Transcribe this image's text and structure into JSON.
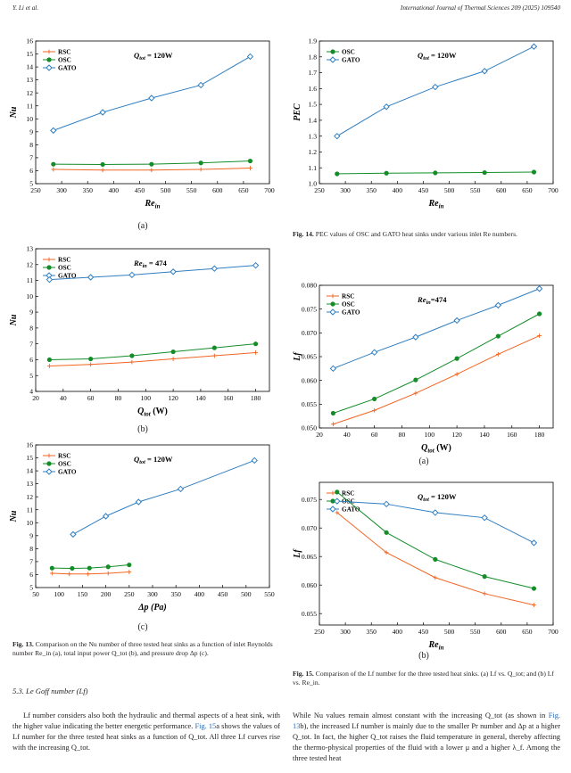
{
  "header": {
    "left": "Y. Li et al.",
    "right": "International Journal of Thermal Sciences 209 (2025) 109540"
  },
  "colors": {
    "RSC": "#f26522",
    "OSC": "#138d28",
    "GATO": "#2f7ec1"
  },
  "chart_data": [
    {
      "id": "fig13a",
      "type": "line",
      "sublabel": "(a)",
      "annotation": "Q_tot = 120W",
      "annotation_main": "Q",
      "annotation_sub": "tot",
      "annotation_rest": " = 120W",
      "xlabel_main": "Re",
      "xlabel_sub": "in",
      "xlabel_units": "",
      "ylabel": "Nu",
      "ylabel_style": "italic",
      "xlim": [
        250,
        700
      ],
      "ylim": [
        5,
        16
      ],
      "xticks": [
        "250",
        "300",
        "350",
        "400",
        "450",
        "500",
        "550",
        "600",
        "650",
        "700"
      ],
      "yticks": [
        "5",
        "6",
        "7",
        "8",
        "9",
        "10",
        "11",
        "12",
        "13",
        "14",
        "15",
        "16"
      ],
      "legend": [
        "RSC",
        "OSC",
        "GATO"
      ],
      "series": [
        {
          "name": "RSC",
          "x": [
            284,
            379,
            473,
            568,
            663
          ],
          "y": [
            6.1,
            6.05,
            6.05,
            6.1,
            6.2
          ]
        },
        {
          "name": "OSC",
          "x": [
            284,
            379,
            473,
            568,
            663
          ],
          "y": [
            6.5,
            6.48,
            6.5,
            6.6,
            6.75
          ]
        },
        {
          "name": "GATO",
          "x": [
            284,
            379,
            473,
            568,
            663
          ],
          "y": [
            9.1,
            10.5,
            11.6,
            12.6,
            14.8
          ]
        }
      ]
    },
    {
      "id": "fig13b",
      "type": "line",
      "sublabel": "(b)",
      "annotation": "Re_in = 474",
      "annotation_main": "Re",
      "annotation_sub": "in",
      "annotation_rest": " = 474",
      "xlabel_main": "Q",
      "xlabel_sub": "tot",
      "xlabel_units": " (W)",
      "ylabel": "Nu",
      "ylabel_style": "italic",
      "xlim": [
        20,
        190
      ],
      "ylim": [
        4,
        13
      ],
      "xticks": [
        "20",
        "40",
        "60",
        "80",
        "100",
        "120",
        "140",
        "160",
        "180"
      ],
      "yticks": [
        "4",
        "5",
        "6",
        "7",
        "8",
        "9",
        "10",
        "11",
        "12",
        "13"
      ],
      "legend": [
        "RSC",
        "OSC",
        "GATO"
      ],
      "series": [
        {
          "name": "RSC",
          "x": [
            30,
            60,
            90,
            120,
            150,
            180
          ],
          "y": [
            5.6,
            5.7,
            5.85,
            6.05,
            6.25,
            6.45
          ]
        },
        {
          "name": "OSC",
          "x": [
            30,
            60,
            90,
            120,
            150,
            180
          ],
          "y": [
            6.0,
            6.05,
            6.25,
            6.5,
            6.75,
            7.0
          ]
        },
        {
          "name": "GATO",
          "x": [
            30,
            60,
            90,
            120,
            150,
            180
          ],
          "y": [
            11.05,
            11.2,
            11.35,
            11.55,
            11.75,
            11.95
          ]
        }
      ]
    },
    {
      "id": "fig13c",
      "type": "line",
      "sublabel": "(c)",
      "annotation": "Q_tot = 120W",
      "annotation_main": "Q",
      "annotation_sub": "tot",
      "annotation_rest": " = 120W",
      "xlabel_main": "Δp (Pa)",
      "xlabel_sub": "",
      "xlabel_units": "",
      "ylabel": "Nu",
      "ylabel_style": "italic",
      "xlim": [
        50,
        550
      ],
      "ylim": [
        5,
        16
      ],
      "xticks": [
        "50",
        "100",
        "150",
        "200",
        "250",
        "300",
        "350",
        "400",
        "450",
        "500",
        "550"
      ],
      "yticks": [
        "5",
        "6",
        "7",
        "8",
        "9",
        "10",
        "11",
        "12",
        "13",
        "14",
        "15",
        "16"
      ],
      "legend": [
        "RSC",
        "OSC",
        "GATO"
      ],
      "series": [
        {
          "name": "RSC",
          "x": [
            85,
            122,
            162,
            205,
            250
          ],
          "y": [
            6.1,
            6.05,
            6.05,
            6.1,
            6.2
          ]
        },
        {
          "name": "OSC",
          "x": [
            85,
            128,
            165,
            205,
            250
          ],
          "y": [
            6.5,
            6.48,
            6.5,
            6.6,
            6.75
          ]
        },
        {
          "name": "GATO",
          "x": [
            130,
            200,
            270,
            360,
            518
          ],
          "y": [
            9.1,
            10.5,
            11.6,
            12.6,
            14.8
          ]
        }
      ]
    },
    {
      "id": "fig14",
      "type": "line",
      "sublabel": "",
      "annotation": "Q_tot = 120W",
      "annotation_main": "Q",
      "annotation_sub": "tot",
      "annotation_rest": " = 120W",
      "xlabel_main": "Re",
      "xlabel_sub": "in",
      "xlabel_units": "",
      "ylabel": "PEC",
      "ylabel_style": "italic",
      "xlim": [
        250,
        700
      ],
      "ylim": [
        1.0,
        1.9
      ],
      "xticks": [
        "250",
        "300",
        "350",
        "400",
        "450",
        "500",
        "550",
        "600",
        "650",
        "700"
      ],
      "yticks": [
        "1.0",
        "1.1",
        "1.2",
        "1.3",
        "1.4",
        "1.5",
        "1.6",
        "1.7",
        "1.8",
        "1.9"
      ],
      "legend": [
        "OSC",
        "GATO"
      ],
      "series": [
        {
          "name": "OSC",
          "x": [
            284,
            379,
            473,
            568,
            663
          ],
          "y": [
            1.062,
            1.066,
            1.068,
            1.07,
            1.073
          ]
        },
        {
          "name": "GATO",
          "x": [
            284,
            379,
            473,
            568,
            663
          ],
          "y": [
            1.3,
            1.485,
            1.61,
            1.71,
            1.865
          ]
        }
      ]
    },
    {
      "id": "fig15a",
      "type": "line",
      "sublabel": "(a)",
      "annotation": "Re_in=474",
      "annotation_main": "Re",
      "annotation_sub": "in",
      "annotation_rest": "=474",
      "xlabel_main": "Q",
      "xlabel_sub": "tot",
      "xlabel_units": " (W)",
      "ylabel": "Lf",
      "ylabel_style": "italic",
      "xlim": [
        20,
        190
      ],
      "ylim": [
        0.05,
        0.08
      ],
      "xticks": [
        "20",
        "40",
        "60",
        "80",
        "100",
        "120",
        "140",
        "160",
        "180"
      ],
      "yticks": [
        "0.050",
        "0.055",
        "0.060",
        "0.065",
        "0.070",
        "0.075",
        "0.080"
      ],
      "legend": [
        "RSC",
        "OSC",
        "GATO"
      ],
      "series": [
        {
          "name": "RSC",
          "x": [
            30,
            60,
            90,
            120,
            150,
            180
          ],
          "y": [
            0.0508,
            0.0537,
            0.0573,
            0.0613,
            0.0655,
            0.0694
          ]
        },
        {
          "name": "OSC",
          "x": [
            30,
            60,
            90,
            120,
            150,
            180
          ],
          "y": [
            0.0531,
            0.0561,
            0.0601,
            0.0646,
            0.0693,
            0.074
          ]
        },
        {
          "name": "GATO",
          "x": [
            30,
            60,
            90,
            120,
            150,
            180
          ],
          "y": [
            0.0625,
            0.0659,
            0.0691,
            0.0726,
            0.0758,
            0.0793
          ]
        }
      ]
    },
    {
      "id": "fig15b",
      "type": "line",
      "sublabel": "(b)",
      "annotation": "Q_tot = 120W",
      "annotation_main": "Q",
      "annotation_sub": "tot",
      "annotation_rest": " = 120W",
      "xlabel_main": "Re",
      "xlabel_sub": "in",
      "xlabel_units": "",
      "ylabel": "Lf",
      "ylabel_style": "italic",
      "xlim": [
        250,
        700
      ],
      "ylim": [
        0.053,
        0.078
      ],
      "xticks": [
        "250",
        "300",
        "350",
        "400",
        "450",
        "500",
        "550",
        "600",
        "650",
        "700"
      ],
      "yticks": [
        "0.055",
        "0.060",
        "0.065",
        "0.070",
        "0.075"
      ],
      "legend": [
        "RSC",
        "OSC",
        "GATO"
      ],
      "series": [
        {
          "name": "RSC",
          "x": [
            284,
            379,
            473,
            568,
            663
          ],
          "y": [
            0.0727,
            0.0657,
            0.0613,
            0.0585,
            0.0565
          ]
        },
        {
          "name": "OSC",
          "x": [
            284,
            379,
            473,
            568,
            663
          ],
          "y": [
            0.0763,
            0.0692,
            0.0645,
            0.0615,
            0.0594
          ]
        },
        {
          "name": "GATO",
          "x": [
            284,
            379,
            473,
            568,
            663
          ],
          "y": [
            0.0747,
            0.0742,
            0.0727,
            0.0718,
            0.0674
          ]
        }
      ]
    }
  ],
  "captions": {
    "fig13_label": "Fig. 13.",
    "fig13_text": "Comparison on the Nu number of three tested heat sinks as a function of inlet Reynolds number Re_in (a), total input power Q_tot (b), and pressure drop Δp (c).",
    "fig14_label": "Fig. 14.",
    "fig14_text": "PEC values of OSC and GATO heat sinks under various inlet Re numbers.",
    "fig15_label": "Fig. 15.",
    "fig15_text": "Comparison of the Lf number for the three tested heat sinks. (a) Lf vs. Q_tot; and (b) Lf vs. Re_in."
  },
  "section_heading": "5.3. Le Goff number (Lf)",
  "paragraph_left": {
    "part1": "Lf number considers also both the hydraulic and thermal aspects of a heat sink, with the higher value indicating the better energetic performance. ",
    "link": "Fig. 15",
    "part2": "a shows the values of Lf number for the three tested heat sinks as a function of Q_tot. All three Lf curves rise with the increasing Q_tot."
  },
  "paragraph_right": {
    "part1": "While Nu values remain almost constant with the increasing Q_tot (as shown in ",
    "link": "Fig. 13",
    "part2": "b), the increased Lf number is mainly due to the smaller Pr number and Δp at a higher Q_tot. In fact, the higher Q_tot raises the fluid temperature in general, thereby affecting the thermo-physical properties of the fluid with a lower μ and a higher λ_f. Among the three tested heat"
  }
}
